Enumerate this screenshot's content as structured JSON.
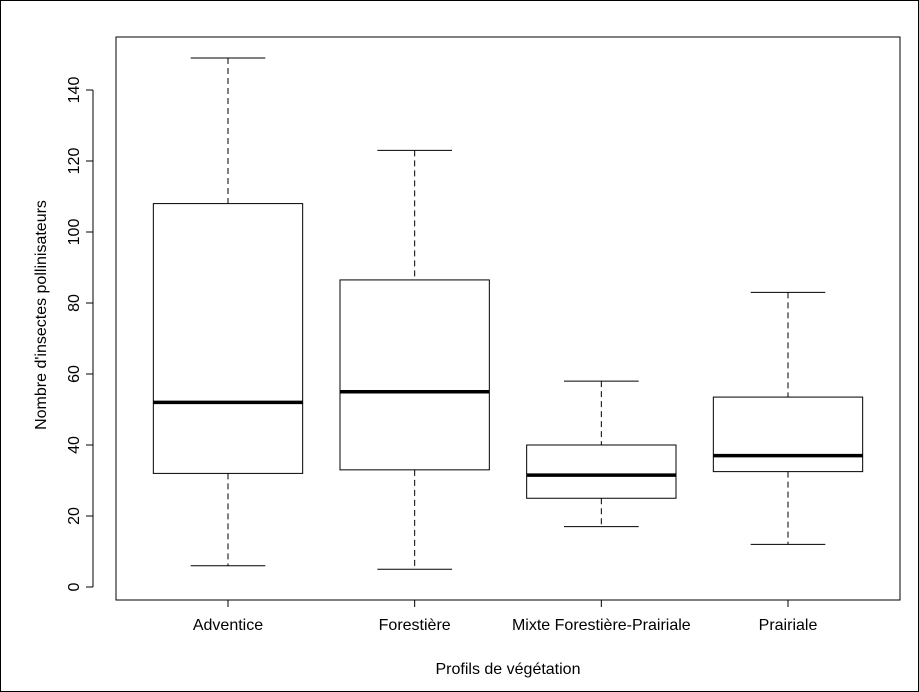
{
  "chart_data": {
    "type": "box",
    "xlabel": "Profils de végétation",
    "ylabel": "Nombre d'insectes pollinisateurs",
    "ylim": [
      -1,
      154
    ],
    "yticks": [
      0,
      20,
      40,
      60,
      80,
      100,
      120,
      140
    ],
    "grid": false,
    "categories": [
      "Adventice",
      "Forestière",
      "Mixte Forestière-Prairiale",
      "Prairiale"
    ],
    "boxes": [
      {
        "min": 6,
        "q1": 32,
        "median": 52,
        "q3": 108,
        "max": 149
      },
      {
        "min": 5,
        "q1": 33,
        "median": 55,
        "q3": 86.5,
        "max": 123
      },
      {
        "min": 17,
        "q1": 25,
        "median": 31.5,
        "q3": 40,
        "max": 58
      },
      {
        "min": 12,
        "q1": 32.5,
        "median": 37,
        "q3": 53.5,
        "max": 83
      }
    ]
  }
}
